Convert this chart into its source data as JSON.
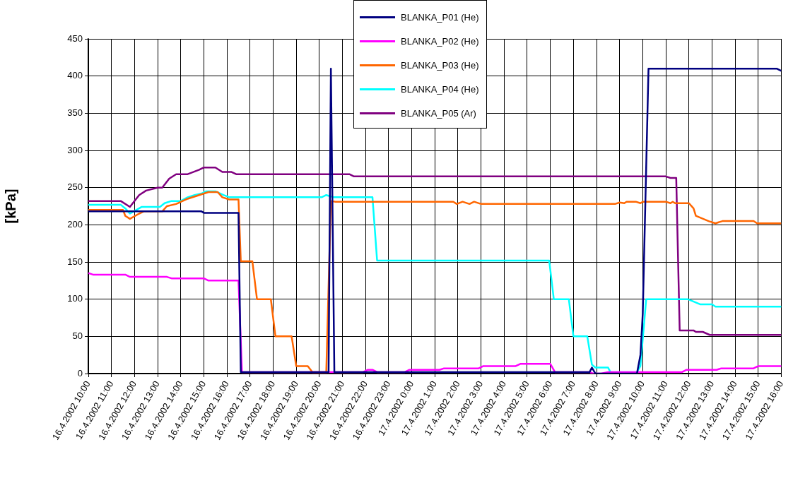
{
  "chart_data": {
    "type": "line",
    "ylabel": "[kPa]",
    "xlim": [
      "2002-04-16T10:00",
      "2002-04-17T16:00"
    ],
    "ylim": [
      0,
      450
    ],
    "xticks": [
      {
        "value": "2002-04-16T10:00",
        "label": "16.4.2002 10:00"
      },
      {
        "value": "2002-04-16T11:00",
        "label": "16.4.2002 11:00"
      },
      {
        "value": "2002-04-16T12:00",
        "label": "16.4.2002 12:00"
      },
      {
        "value": "2002-04-16T13:00",
        "label": "16.4.2002 13:00"
      },
      {
        "value": "2002-04-16T14:00",
        "label": "16.4.2002 14:00"
      },
      {
        "value": "2002-04-16T15:00",
        "label": "16.4.2002 15:00"
      },
      {
        "value": "2002-04-16T16:00",
        "label": "16.4.2002 16:00"
      },
      {
        "value": "2002-04-16T17:00",
        "label": "16.4.2002 17:00"
      },
      {
        "value": "2002-04-16T18:00",
        "label": "16.4.2002 18:00"
      },
      {
        "value": "2002-04-16T19:00",
        "label": "16.4.2002 19:00"
      },
      {
        "value": "2002-04-16T20:00",
        "label": "16.4.2002 20:00"
      },
      {
        "value": "2002-04-16T21:00",
        "label": "16.4.2002 21:00"
      },
      {
        "value": "2002-04-16T22:00",
        "label": "16.4.2002 22:00"
      },
      {
        "value": "2002-04-16T23:00",
        "label": "16.4.2002 23:00"
      },
      {
        "value": "2002-04-17T00:00",
        "label": "17.4.2002 0:00"
      },
      {
        "value": "2002-04-17T01:00",
        "label": "17.4.2002 1:00"
      },
      {
        "value": "2002-04-17T02:00",
        "label": "17.4.2002 2:00"
      },
      {
        "value": "2002-04-17T03:00",
        "label": "17.4.2002 3:00"
      },
      {
        "value": "2002-04-17T04:00",
        "label": "17.4.2002 4:00"
      },
      {
        "value": "2002-04-17T05:00",
        "label": "17.4.2002 5:00"
      },
      {
        "value": "2002-04-17T06:00",
        "label": "17.4.2002 6:00"
      },
      {
        "value": "2002-04-17T07:00",
        "label": "17.4.2002 7:00"
      },
      {
        "value": "2002-04-17T08:00",
        "label": "17.4.2002 8:00"
      },
      {
        "value": "2002-04-17T09:00",
        "label": "17.4.2002 9:00"
      },
      {
        "value": "2002-04-17T10:00",
        "label": "17.4.2002 10:00"
      },
      {
        "value": "2002-04-17T11:00",
        "label": "17.4.2002 11:00"
      },
      {
        "value": "2002-04-17T12:00",
        "label": "17.4.2002 12:00"
      },
      {
        "value": "2002-04-17T13:00",
        "label": "17.4.2002 13:00"
      },
      {
        "value": "2002-04-17T14:00",
        "label": "17.4.2002 14:00"
      },
      {
        "value": "2002-04-17T15:00",
        "label": "17.4.2002 15:00"
      },
      {
        "value": "2002-04-17T16:00",
        "label": "17.4.2002 16:00"
      }
    ],
    "yticks": [
      0,
      50,
      100,
      150,
      200,
      250,
      300,
      350,
      400,
      450
    ],
    "grid": true,
    "legend": "top",
    "marker": "none",
    "line_style": "solid",
    "series": [
      {
        "name": "BLANKA_P01 (He)",
        "color": "#000080",
        "x": [
          "2002-04-16T10:00",
          "2002-04-16T14:54",
          "2002-04-16T15:00",
          "2002-04-16T16:30",
          "2002-04-16T16:36",
          "2002-04-16T20:24",
          "2002-04-16T20:30",
          "2002-04-16T20:39",
          "2002-04-17T07:42",
          "2002-04-17T07:48",
          "2002-04-17T07:57",
          "2002-04-17T09:45",
          "2002-04-17T09:54",
          "2002-04-17T10:00",
          "2002-04-17T10:15",
          "2002-04-17T15:48",
          "2002-04-17T16:00"
        ],
        "values": [
          218,
          218,
          216,
          216,
          2,
          2,
          410,
          2,
          2,
          8,
          0,
          0,
          25,
          80,
          410,
          410,
          407
        ]
      },
      {
        "name": "BLANKA_P02 (He)",
        "color": "#ff00ff",
        "x": [
          "2002-04-16T10:00",
          "2002-04-16T10:12",
          "2002-04-16T11:36",
          "2002-04-16T11:48",
          "2002-04-16T13:24",
          "2002-04-16T13:36",
          "2002-04-16T15:00",
          "2002-04-16T15:12",
          "2002-04-16T16:30",
          "2002-04-16T16:39",
          "2002-04-16T21:54",
          "2002-04-16T22:06",
          "2002-04-16T22:18",
          "2002-04-16T22:30",
          "2002-04-16T23:42",
          "2002-04-16T23:54",
          "2002-04-17T01:12",
          "2002-04-17T01:24",
          "2002-04-17T02:54",
          "2002-04-17T03:06",
          "2002-04-17T04:30",
          "2002-04-17T04:42",
          "2002-04-17T06:00",
          "2002-04-17T06:12",
          "2002-04-17T07:42",
          "2002-04-17T07:51",
          "2002-04-17T08:12",
          "2002-04-17T08:30",
          "2002-04-17T11:42",
          "2002-04-17T11:54",
          "2002-04-17T13:12",
          "2002-04-17T13:24",
          "2002-04-17T14:48",
          "2002-04-17T15:00",
          "2002-04-17T16:00"
        ],
        "values": [
          135,
          133,
          133,
          130,
          130,
          128,
          128,
          125,
          125,
          2,
          2,
          5,
          5,
          2,
          2,
          5,
          5,
          7,
          7,
          10,
          10,
          13,
          13,
          2,
          2,
          0,
          0,
          2,
          2,
          5,
          5,
          7,
          7,
          10,
          10
        ]
      },
      {
        "name": "BLANKA_P03 (He)",
        "color": "#ff6600",
        "x": [
          "2002-04-16T10:00",
          "2002-04-16T11:30",
          "2002-04-16T11:36",
          "2002-04-16T11:48",
          "2002-04-16T12:12",
          "2002-04-16T12:24",
          "2002-04-16T13:12",
          "2002-04-16T13:24",
          "2002-04-16T13:48",
          "2002-04-16T14:18",
          "2002-04-16T14:48",
          "2002-04-16T15:12",
          "2002-04-16T15:36",
          "2002-04-16T15:48",
          "2002-04-16T16:06",
          "2002-04-16T16:30",
          "2002-04-16T16:36",
          "2002-04-16T17:06",
          "2002-04-16T17:18",
          "2002-04-16T17:54",
          "2002-04-16T18:06",
          "2002-04-16T18:48",
          "2002-04-16T19:00",
          "2002-04-16T19:30",
          "2002-04-16T19:42",
          "2002-04-16T20:18",
          "2002-04-16T20:30",
          "2002-04-16T20:42",
          "2002-04-17T01:48",
          "2002-04-17T01:57",
          "2002-04-17T02:12",
          "2002-04-17T02:30",
          "2002-04-17T02:42",
          "2002-04-17T03:00",
          "2002-04-17T08:48",
          "2002-04-17T09:00",
          "2002-04-17T09:12",
          "2002-04-17T09:18",
          "2002-04-17T09:42",
          "2002-04-17T09:54",
          "2002-04-17T10:00",
          "2002-04-17T11:00",
          "2002-04-17T11:12",
          "2002-04-17T11:18",
          "2002-04-17T11:24",
          "2002-04-17T12:00",
          "2002-04-17T12:12",
          "2002-04-17T12:18",
          "2002-04-17T12:51",
          "2002-04-17T13:09",
          "2002-04-17T13:27",
          "2002-04-17T14:48",
          "2002-04-17T14:57",
          "2002-04-17T16:00"
        ],
        "values": [
          220,
          220,
          212,
          208,
          215,
          218,
          218,
          225,
          228,
          235,
          240,
          244,
          244,
          237,
          234,
          234,
          151,
          151,
          100,
          100,
          50,
          50,
          10,
          10,
          2,
          2,
          232,
          231,
          231,
          228,
          231,
          228,
          231,
          228,
          228,
          230,
          229,
          231,
          231,
          229,
          231,
          231,
          229,
          231,
          229,
          229,
          222,
          212,
          205,
          202,
          205,
          205,
          202,
          202
        ]
      },
      {
        "name": "BLANKA_P04 (He)",
        "color": "#00ffff",
        "x": [
          "2002-04-16T10:00",
          "2002-04-16T11:24",
          "2002-04-16T11:36",
          "2002-04-16T11:48",
          "2002-04-16T12:18",
          "2002-04-16T13:06",
          "2002-04-16T13:18",
          "2002-04-16T13:36",
          "2002-04-16T14:00",
          "2002-04-16T14:18",
          "2002-04-16T14:36",
          "2002-04-16T14:54",
          "2002-04-16T15:06",
          "2002-04-16T15:30",
          "2002-04-16T15:51",
          "2002-04-16T16:06",
          "2002-04-16T20:06",
          "2002-04-16T20:18",
          "2002-04-16T20:36",
          "2002-04-16T22:18",
          "2002-04-16T22:30",
          "2002-04-17T05:57",
          "2002-04-17T06:09",
          "2002-04-17T06:48",
          "2002-04-17T07:00",
          "2002-04-17T07:36",
          "2002-04-17T07:48",
          "2002-04-17T07:57",
          "2002-04-17T08:30",
          "2002-04-17T08:36",
          "2002-04-17T09:45",
          "2002-04-17T09:54",
          "2002-04-17T10:09",
          "2002-04-17T11:57",
          "2002-04-17T12:30",
          "2002-04-17T13:00",
          "2002-04-17T13:09",
          "2002-04-17T16:00"
        ],
        "values": [
          227,
          227,
          222,
          215,
          224,
          224,
          229,
          232,
          232,
          237,
          240,
          242,
          245,
          245,
          240,
          237,
          237,
          240,
          237,
          237,
          152,
          152,
          100,
          100,
          50,
          50,
          12,
          8,
          8,
          2,
          2,
          10,
          100,
          100,
          93,
          93,
          90,
          90
        ]
      },
      {
        "name": "BLANKA_P05 (Ar)",
        "color": "#800080",
        "x": [
          "2002-04-16T10:00",
          "2002-04-16T11:24",
          "2002-04-16T11:48",
          "2002-04-16T12:12",
          "2002-04-16T12:30",
          "2002-04-16T13:00",
          "2002-04-16T13:12",
          "2002-04-16T13:30",
          "2002-04-16T13:48",
          "2002-04-16T14:18",
          "2002-04-16T14:48",
          "2002-04-16T15:00",
          "2002-04-16T15:30",
          "2002-04-16T15:48",
          "2002-04-16T16:12",
          "2002-04-16T16:24",
          "2002-04-16T21:18",
          "2002-04-16T21:30",
          "2002-04-17T11:00",
          "2002-04-17T11:12",
          "2002-04-17T11:27",
          "2002-04-17T11:36",
          "2002-04-17T12:12",
          "2002-04-17T12:18",
          "2002-04-17T12:36",
          "2002-04-17T12:54",
          "2002-04-17T16:00"
        ],
        "values": [
          232,
          232,
          224,
          240,
          246,
          250,
          250,
          262,
          268,
          268,
          274,
          277,
          277,
          271,
          271,
          268,
          268,
          265,
          265,
          263,
          263,
          58,
          58,
          56,
          56,
          52,
          52
        ]
      }
    ]
  }
}
